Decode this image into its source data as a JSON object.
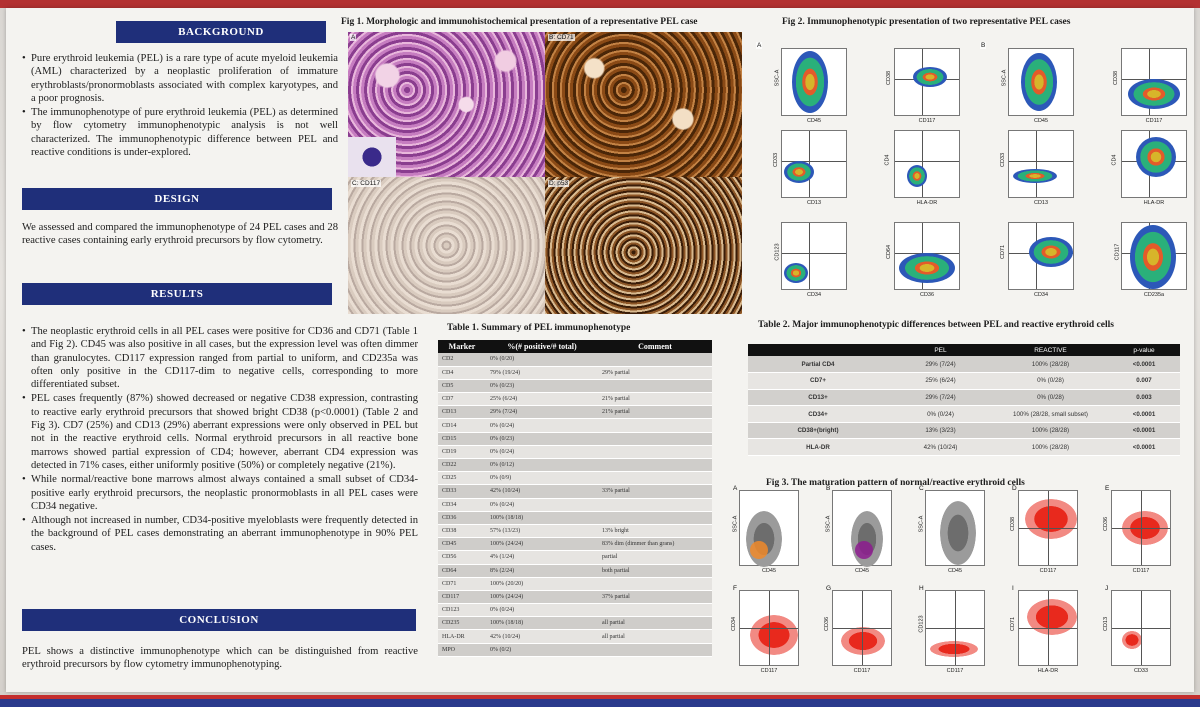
{
  "background": {
    "title": "BACKGROUND",
    "bullets": [
      "Pure erythroid leukemia (PEL) is a rare type of acute myeloid leukemia (AML) characterized by a neoplastic proliferation of immature erythroblasts/pronormoblasts associated with complex karyotypes, and a poor prognosis.",
      "The immunophenotype of pure erythroid leukemia (PEL) as determined by flow cytometry immunophenotypic analysis is not well characterized. The immunophenotypic difference between PEL and reactive conditions is under-explored."
    ]
  },
  "design": {
    "title": "DESIGN",
    "text": "We assessed and compared the immunophenotype of 24 PEL cases and 28 reactive cases containing early erythroid precursors by flow cytometry."
  },
  "results": {
    "title": "RESULTS",
    "bullets": [
      "The neoplastic erythroid cells in all PEL cases were positive for CD36 and CD71 (Table 1 and Fig 2). CD45 was also positive in all cases, but the expression level was often dimmer than granulocytes. CD117 expression ranged from partial to uniform, and CD235a was often only positive in the CD117-dim to negative cells, corresponding to more differentiated subset.",
      "PEL cases frequently (87%) showed decreased or negative CD38 expression, contrasting to reactive early erythroid precursors that showed bright CD38 (p<0.0001) (Table 2 and Fig 3). CD7 (25%) and CD13 (29%) aberrant expressions were only observed in PEL but not in the reactive erythroid cells. Normal erythroid precursors in all reactive bone marrows showed partial expression of CD4; however, aberrant CD4 expression was detected in 71% cases, either uniformly positive (50%) or completely negative (21%).",
      "While normal/reactive bone marrows almost always contained a small subset of CD34-positive early erythroid precursors, the neoplastic pronormoblasts in all PEL cases were CD34 negative.",
      "Although not increased in number, CD34-positive myeloblasts were frequently detected in the background of PEL cases demonstrating an aberrant immunophenotype in 90% PEL cases."
    ]
  },
  "conclusion": {
    "title": "CONCLUSION",
    "text": "PEL shows a distinctive immunophenotype which can be distinguished from reactive erythroid precursors by flow cytometry immunophenotyping."
  },
  "fig1": {
    "caption": "Fig 1. Morphologic and immunohistochemical presentation of a representative PEL case",
    "labels": {
      "a": "A",
      "b": "B: CD71",
      "c": "C: CD117",
      "d": "D: p53"
    }
  },
  "fig2": {
    "caption": "Fig 2. Immunophenotypic presentation of two representative PEL cases",
    "panel_a": "A",
    "panel_b": "B",
    "plots": [
      {
        "x": "CD45",
        "y": "SSC-A"
      },
      {
        "x": "CD117",
        "y": "CD38"
      },
      {
        "x": "CD45",
        "y": "SSC-A"
      },
      {
        "x": "CD117",
        "y": "CD38"
      },
      {
        "x": "CD13",
        "y": "CD33"
      },
      {
        "x": "HLA-DR",
        "y": "CD4"
      },
      {
        "x": "CD13",
        "y": "CD33"
      },
      {
        "x": "HLA-DR",
        "y": "CD4"
      },
      {
        "x": "CD34",
        "y": "CD123"
      },
      {
        "x": "CD36",
        "y": "CD64"
      },
      {
        "x": "CD34",
        "y": "CD71"
      },
      {
        "x": "CD235a",
        "y": "CD117"
      }
    ]
  },
  "table1": {
    "caption": "Table 1. Summary of PEL immunophenotype",
    "headers": [
      "Marker",
      "%(# positive/# total)",
      "Comment"
    ],
    "rows": [
      [
        "CD2",
        "0% (0/20)",
        ""
      ],
      [
        "CD4",
        "79% (19/24)",
        "29% partial"
      ],
      [
        "CD5",
        "0% (0/23)",
        ""
      ],
      [
        "CD7",
        "25% (6/24)",
        "21% partial"
      ],
      [
        "CD13",
        "29% (7/24)",
        "21% partial"
      ],
      [
        "CD14",
        "0% (0/24)",
        ""
      ],
      [
        "CD15",
        "0% (0/23)",
        ""
      ],
      [
        "CD19",
        "0% (0/24)",
        ""
      ],
      [
        "CD22",
        "0% (0/12)",
        ""
      ],
      [
        "CD25",
        "0% (0/9)",
        ""
      ],
      [
        "CD33",
        "42% (10/24)",
        "33% partial"
      ],
      [
        "CD34",
        "0% (0/24)",
        ""
      ],
      [
        "CD36",
        "100% (18/18)",
        ""
      ],
      [
        "CD38",
        "57% (13/23)",
        "13% bright"
      ],
      [
        "CD45",
        "100% (24/24)",
        "83% dim (dimmer than grans)"
      ],
      [
        "CD56",
        "4% (1/24)",
        "partial"
      ],
      [
        "CD64",
        "8% (2/24)",
        "both partial"
      ],
      [
        "CD71",
        "100% (20/20)",
        ""
      ],
      [
        "CD117",
        "100% (24/24)",
        "37% partial"
      ],
      [
        "CD123",
        "0% (0/24)",
        ""
      ],
      [
        "CD235",
        "100% (18/18)",
        "all partial"
      ],
      [
        "HLA-DR",
        "42% (10/24)",
        "all partial"
      ],
      [
        "MPO",
        "0% (0/2)",
        ""
      ]
    ]
  },
  "table2": {
    "caption": "Table 2. Major immunophenotypic differences between PEL and reactive erythroid cells",
    "headers": [
      "",
      "PEL",
      "REACTIVE",
      "p-value"
    ],
    "rows": [
      [
        "Partial CD4",
        "29% (7/24)",
        "100% (28/28)",
        "<0.0001"
      ],
      [
        "CD7+",
        "25% (6/24)",
        "0% (0/28)",
        "0.007"
      ],
      [
        "CD13+",
        "29% (7/24)",
        "0% (0/28)",
        "0.003"
      ],
      [
        "CD34+",
        "0% (0/24)",
        "100% (28/28, small subset)",
        "<0.0001"
      ],
      [
        "CD38+(bright)",
        "13% (3/23)",
        "100% (28/28)",
        "<0.0001"
      ],
      [
        "HLA-DR",
        "42% (10/24)",
        "100% (28/28)",
        "<0.0001"
      ]
    ]
  },
  "fig3": {
    "caption": "Fig 3. The maturation pattern of normal/reactive erythroid cells",
    "plots": [
      {
        "tag": "A",
        "x": "CD45",
        "y": "SSC-A",
        "kind": "gray-orange"
      },
      {
        "tag": "B",
        "x": "CD45",
        "y": "SSC-A",
        "kind": "gray-purple"
      },
      {
        "tag": "C",
        "x": "CD45",
        "y": "SSC-A",
        "kind": "gray"
      },
      {
        "tag": "D",
        "x": "CD117",
        "y": "CD38",
        "kind": "red"
      },
      {
        "tag": "E",
        "x": "CD117",
        "y": "CD36",
        "kind": "red"
      },
      {
        "tag": "F",
        "x": "CD117",
        "y": "CD34",
        "kind": "red"
      },
      {
        "tag": "G",
        "x": "CD117",
        "y": "CD36",
        "kind": "red"
      },
      {
        "tag": "H",
        "x": "CD117",
        "y": "CD123",
        "kind": "red"
      },
      {
        "tag": "I",
        "x": "HLA-DR",
        "y": "CD71",
        "kind": "red"
      },
      {
        "tag": "J",
        "x": "CD33",
        "y": "CD13",
        "kind": "red"
      }
    ]
  }
}
